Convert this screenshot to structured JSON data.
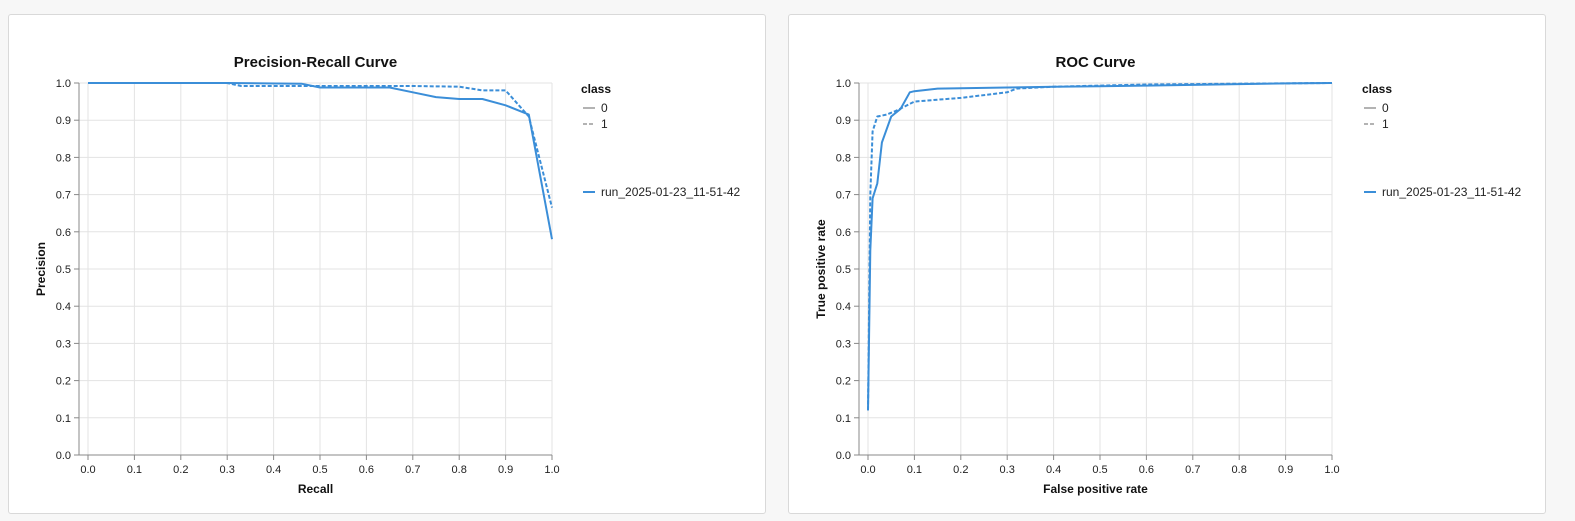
{
  "chart_data": [
    {
      "type": "line",
      "title": "Precision-Recall Curve",
      "xlabel": "Recall",
      "ylabel": "Precision",
      "xlim": [
        0,
        1
      ],
      "ylim": [
        0,
        1
      ],
      "x_ticks": [
        "0.0",
        "0.1",
        "0.2",
        "0.3",
        "0.4",
        "0.5",
        "0.6",
        "0.7",
        "0.8",
        "0.9",
        "1.0"
      ],
      "y_ticks": [
        "0.0",
        "0.1",
        "0.2",
        "0.3",
        "0.4",
        "0.5",
        "0.6",
        "0.7",
        "0.8",
        "0.9",
        "1.0"
      ],
      "grid": true,
      "legend_position": "right",
      "legend": {
        "dash_title": "class",
        "dash_entries": [
          "0",
          "1"
        ],
        "color_entries": [
          "run_2025-01-23_11-51-42"
        ]
      },
      "series": [
        {
          "name": "run_2025-01-23_11-51-42",
          "class": "0",
          "dash": "solid",
          "x": [
            0.0,
            0.1,
            0.2,
            0.3,
            0.46,
            0.5,
            0.55,
            0.65,
            0.7,
            0.75,
            0.8,
            0.85,
            0.9,
            0.95,
            1.0
          ],
          "y": [
            1.0,
            1.0,
            1.0,
            1.0,
            0.998,
            0.988,
            0.988,
            0.988,
            0.975,
            0.962,
            0.957,
            0.957,
            0.94,
            0.915,
            0.58
          ]
        },
        {
          "name": "run_2025-01-23_11-51-42",
          "class": "1",
          "dash": "dashed",
          "x": [
            0.0,
            0.1,
            0.2,
            0.3,
            0.33,
            0.5,
            0.6,
            0.7,
            0.8,
            0.85,
            0.9,
            0.95,
            1.0
          ],
          "y": [
            1.0,
            1.0,
            1.0,
            1.0,
            0.992,
            0.992,
            0.992,
            0.992,
            0.99,
            0.98,
            0.98,
            0.91,
            0.665
          ]
        }
      ]
    },
    {
      "type": "line",
      "title": "ROC Curve",
      "xlabel": "False positive rate",
      "ylabel": "True positive rate",
      "xlim": [
        0,
        1
      ],
      "ylim": [
        0,
        1
      ],
      "x_ticks": [
        "0.0",
        "0.1",
        "0.2",
        "0.3",
        "0.4",
        "0.5",
        "0.6",
        "0.7",
        "0.8",
        "0.9",
        "1.0"
      ],
      "y_ticks": [
        "0.0",
        "0.1",
        "0.2",
        "0.3",
        "0.4",
        "0.5",
        "0.6",
        "0.7",
        "0.8",
        "0.9",
        "1.0"
      ],
      "grid": true,
      "legend_position": "right",
      "legend": {
        "dash_title": "class",
        "dash_entries": [
          "0",
          "1"
        ],
        "color_entries": [
          "run_2025-01-23_11-51-42"
        ]
      },
      "series": [
        {
          "name": "run_2025-01-23_11-51-42",
          "class": "0",
          "dash": "solid",
          "x": [
            0.0,
            0.005,
            0.01,
            0.02,
            0.03,
            0.05,
            0.07,
            0.09,
            0.1,
            0.15,
            0.2,
            0.3,
            0.4,
            0.5,
            0.6,
            0.7,
            0.8,
            0.9,
            1.0
          ],
          "y": [
            0.12,
            0.55,
            0.69,
            0.73,
            0.84,
            0.91,
            0.93,
            0.975,
            0.978,
            0.985,
            0.986,
            0.988,
            0.99,
            0.991,
            0.993,
            0.995,
            0.997,
            0.999,
            1.0
          ],
          "color": "#3b8ed8"
        },
        {
          "name": "run_2025-01-23_11-51-42",
          "class": "1",
          "dash": "dashed",
          "x": [
            0.0,
            0.005,
            0.01,
            0.02,
            0.04,
            0.06,
            0.1,
            0.15,
            0.2,
            0.3,
            0.32,
            0.4,
            0.6,
            0.8,
            1.0
          ],
          "y": [
            0.12,
            0.7,
            0.87,
            0.91,
            0.915,
            0.925,
            0.95,
            0.955,
            0.96,
            0.975,
            0.985,
            0.99,
            0.996,
            0.998,
            1.0
          ],
          "color": "#3b8ed8"
        }
      ]
    }
  ],
  "colors": {
    "series": "#3b8ed8",
    "legend_dash": "#b3b3b3"
  }
}
